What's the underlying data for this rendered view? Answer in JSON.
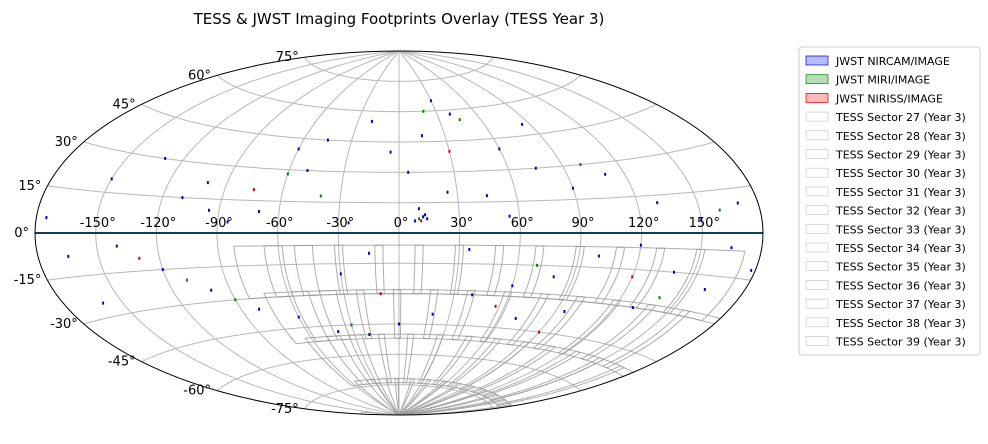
{
  "chart_data": {
    "type": "scatter",
    "projection": "aitoff",
    "title": "TESS & JWST Imaging Footprints Overlay (TESS Year 3)",
    "grid": true,
    "legend_placement": "outside-right",
    "x_tick_labels": [
      "-150°",
      "-120°",
      "-90°",
      "-60°",
      "-30°",
      "0°",
      "30°",
      "60°",
      "90°",
      "120°",
      "150°"
    ],
    "x_ticks": [
      -150,
      -120,
      -90,
      -60,
      -30,
      0,
      30,
      60,
      90,
      120,
      150
    ],
    "y_tick_labels": [
      "-75°",
      "-60°",
      "-45°",
      "-30°",
      "-15°",
      "0°",
      "15°",
      "30°",
      "45°",
      "60°",
      "75°"
    ],
    "y_ticks": [
      -75,
      -60,
      -45,
      -30,
      -15,
      0,
      15,
      30,
      45,
      60,
      75
    ],
    "xlim": [
      -180,
      180
    ],
    "ylim": [
      -90,
      90
    ],
    "series": [
      {
        "name": "JWST NIRCAM/IMAGE",
        "color": "#0000cc",
        "fill": "#aab0ff",
        "kind": "footprint"
      },
      {
        "name": "JWST MIRI/IMAGE",
        "color": "#008000",
        "fill": "#a8d8a8",
        "kind": "footprint"
      },
      {
        "name": "JWST NIRISS/IMAGE",
        "color": "#cc0000",
        "fill": "#ffaaaa",
        "kind": "footprint"
      },
      {
        "name": "TESS Sector 27 (Year 3)",
        "color": "#999999",
        "kind": "sector"
      },
      {
        "name": "TESS Sector 28 (Year 3)",
        "color": "#999999",
        "kind": "sector"
      },
      {
        "name": "TESS Sector 29 (Year 3)",
        "color": "#999999",
        "kind": "sector"
      },
      {
        "name": "TESS Sector 30 (Year 3)",
        "color": "#999999",
        "kind": "sector"
      },
      {
        "name": "TESS Sector 31 (Year 3)",
        "color": "#999999",
        "kind": "sector"
      },
      {
        "name": "TESS Sector 32 (Year 3)",
        "color": "#999999",
        "kind": "sector"
      },
      {
        "name": "TESS Sector 33 (Year 3)",
        "color": "#999999",
        "kind": "sector"
      },
      {
        "name": "TESS Sector 34 (Year 3)",
        "color": "#999999",
        "kind": "sector"
      },
      {
        "name": "TESS Sector 35 (Year 3)",
        "color": "#999999",
        "kind": "sector"
      },
      {
        "name": "TESS Sector 36 (Year 3)",
        "color": "#999999",
        "kind": "sector"
      },
      {
        "name": "TESS Sector 37 (Year 3)",
        "color": "#999999",
        "kind": "sector"
      },
      {
        "name": "TESS Sector 38 (Year 3)",
        "color": "#999999",
        "kind": "sector"
      },
      {
        "name": "TESS Sector 39 (Year 3)",
        "color": "#999999",
        "kind": "sector"
      }
    ],
    "jwst_points": [
      {
        "series": 0,
        "points": [
          [
            12,
            8
          ],
          [
            14,
            7
          ],
          [
            13,
            9
          ],
          [
            10,
            12
          ],
          [
            8,
            6
          ],
          [
            -110,
            15
          ],
          [
            -100,
            22
          ],
          [
            -95,
            10
          ],
          [
            -60,
            40
          ],
          [
            -50,
            30
          ],
          [
            -45,
            45
          ],
          [
            -20,
            55
          ],
          [
            30,
            65
          ],
          [
            40,
            58
          ],
          [
            60,
            40
          ],
          [
            75,
            30
          ],
          [
            90,
            20
          ],
          [
            110,
            25
          ],
          [
            130,
            12
          ],
          [
            150,
            5
          ],
          [
            165,
            -5
          ],
          [
            -165,
            -8
          ],
          [
            -140,
            -5
          ],
          [
            -120,
            -15
          ],
          [
            -100,
            -25
          ],
          [
            -80,
            -35
          ],
          [
            -60,
            -40
          ],
          [
            -40,
            -48
          ],
          [
            -20,
            -50
          ],
          [
            0,
            -45
          ],
          [
            20,
            -40
          ],
          [
            40,
            -30
          ],
          [
            60,
            -25
          ],
          [
            80,
            -20
          ],
          [
            100,
            -10
          ],
          [
            120,
            -5
          ],
          [
            140,
            -15
          ],
          [
            160,
            -20
          ],
          [
            -30,
            -20
          ],
          [
            -15,
            -10
          ],
          [
            25,
            20
          ],
          [
            45,
            18
          ],
          [
            -70,
            10
          ],
          [
            -85,
            5
          ],
          [
            70,
            -40
          ],
          [
            95,
            -35
          ],
          [
            -130,
            30
          ],
          [
            -150,
            20
          ],
          [
            170,
            10
          ],
          [
            130,
            -30
          ],
          [
            5,
            30
          ],
          [
            -5,
            40
          ],
          [
            15,
            48
          ],
          [
            55,
            8
          ],
          [
            -25,
            5
          ],
          [
            35,
            -8
          ],
          [
            -160,
            -25
          ],
          [
            -175,
            5
          ],
          [
            178,
            -12
          ],
          [
            85,
            50
          ]
        ]
      },
      {
        "series": 1,
        "points": [
          [
            10,
            7
          ],
          [
            -60,
            28
          ],
          [
            45,
            55
          ],
          [
            100,
            30
          ],
          [
            -110,
            -20
          ],
          [
            70,
            -15
          ],
          [
            -30,
            -45
          ],
          [
            140,
            -25
          ],
          [
            20,
            60
          ],
          [
            -90,
            -30
          ],
          [
            160,
            8
          ],
          [
            -40,
            18
          ]
        ]
      },
      {
        "series": 2,
        "points": [
          [
            11,
            6
          ],
          [
            -75,
            20
          ],
          [
            55,
            -35
          ],
          [
            120,
            -18
          ],
          [
            -130,
            -10
          ],
          [
            30,
            40
          ],
          [
            -10,
            -30
          ],
          [
            90,
            -45
          ]
        ]
      }
    ],
    "tess_sectors": [
      {
        "sector": 27,
        "center": [
          -70,
          -55
        ]
      },
      {
        "sector": 28,
        "center": [
          -55,
          -55
        ]
      },
      {
        "sector": 29,
        "center": [
          -40,
          -55
        ]
      },
      {
        "sector": 30,
        "center": [
          -20,
          -55
        ]
      },
      {
        "sector": 31,
        "center": [
          0,
          -55
        ]
      },
      {
        "sector": 32,
        "center": [
          20,
          -55
        ]
      },
      {
        "sector": 33,
        "center": [
          40,
          -55
        ]
      },
      {
        "sector": 34,
        "center": [
          60,
          -55
        ]
      },
      {
        "sector": 35,
        "center": [
          80,
          -55
        ]
      },
      {
        "sector": 36,
        "center": [
          100,
          -55
        ]
      },
      {
        "sector": 37,
        "center": [
          120,
          -55
        ]
      },
      {
        "sector": 38,
        "center": [
          140,
          -55
        ]
      },
      {
        "sector": 39,
        "center": [
          160,
          -55
        ]
      }
    ]
  }
}
